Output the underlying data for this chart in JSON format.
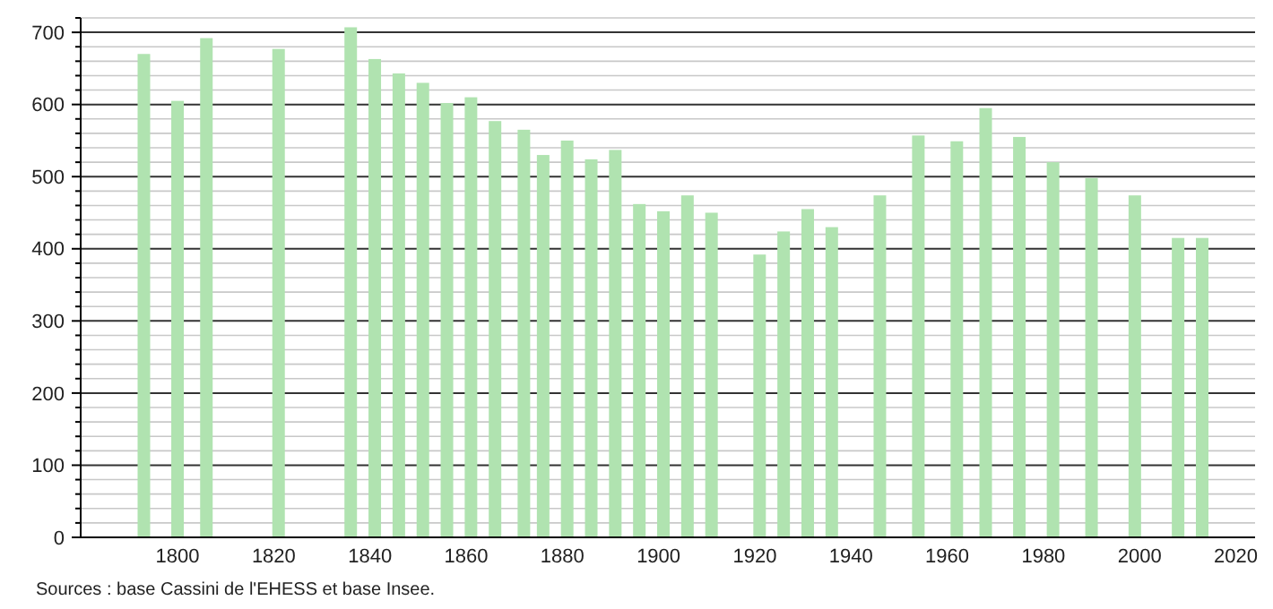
{
  "chart_data": {
    "type": "bar",
    "x": [
      1793,
      1800,
      1806,
      1821,
      1836,
      1841,
      1846,
      1851,
      1856,
      1861,
      1866,
      1872,
      1876,
      1881,
      1886,
      1891,
      1896,
      1901,
      1906,
      1911,
      1921,
      1926,
      1931,
      1936,
      1946,
      1954,
      1962,
      1968,
      1975,
      1982,
      1990,
      1999,
      2008,
      2013
    ],
    "values": [
      670,
      605,
      692,
      677,
      707,
      663,
      643,
      630,
      602,
      610,
      577,
      565,
      530,
      550,
      524,
      537,
      462,
      452,
      474,
      450,
      392,
      424,
      455,
      430,
      474,
      557,
      549,
      595,
      555,
      520,
      498,
      474,
      415,
      415
    ],
    "color": "#b0e3b0",
    "xlim": [
      1778,
      2024
    ],
    "xticks": [
      1800,
      1820,
      1840,
      1860,
      1880,
      1900,
      1920,
      1940,
      1960,
      1980,
      2000,
      2020
    ],
    "ylim": [
      0,
      720
    ],
    "yticks": [
      0,
      {
        "value": 20,
        "label": null
      },
      {
        "value": 40,
        "label": null
      },
      {
        "value": 60,
        "label": null
      },
      {
        "value": 80,
        "label": null
      },
      100,
      {
        "value": 120,
        "label": null
      },
      {
        "value": 140,
        "label": null
      },
      {
        "value": 160,
        "label": null
      },
      {
        "value": 180,
        "label": null
      },
      200,
      {
        "value": 220,
        "label": null
      },
      {
        "value": 240,
        "label": null
      },
      {
        "value": 260,
        "label": null
      },
      {
        "value": 280,
        "label": null
      },
      300,
      {
        "value": 320,
        "label": null
      },
      {
        "value": 340,
        "label": null
      },
      {
        "value": 360,
        "label": null
      },
      {
        "value": 380,
        "label": null
      },
      400,
      {
        "value": 420,
        "label": null
      },
      {
        "value": 440,
        "label": null
      },
      {
        "value": 460,
        "label": null
      },
      {
        "value": 480,
        "label": null
      },
      500,
      {
        "value": 520,
        "label": null
      },
      {
        "value": 540,
        "label": null
      },
      {
        "value": 560,
        "label": null
      },
      {
        "value": 580,
        "label": null
      },
      600,
      {
        "value": 620,
        "label": null
      },
      {
        "value": 640,
        "label": null
      },
      {
        "value": 660,
        "label": null
      },
      {
        "value": 680,
        "label": null
      },
      700,
      {
        "value": 720,
        "label": null
      }
    ],
    "grid": "y",
    "annotations": [
      "Sources : base Cassini de l'EHESS et base Insee."
    ]
  }
}
